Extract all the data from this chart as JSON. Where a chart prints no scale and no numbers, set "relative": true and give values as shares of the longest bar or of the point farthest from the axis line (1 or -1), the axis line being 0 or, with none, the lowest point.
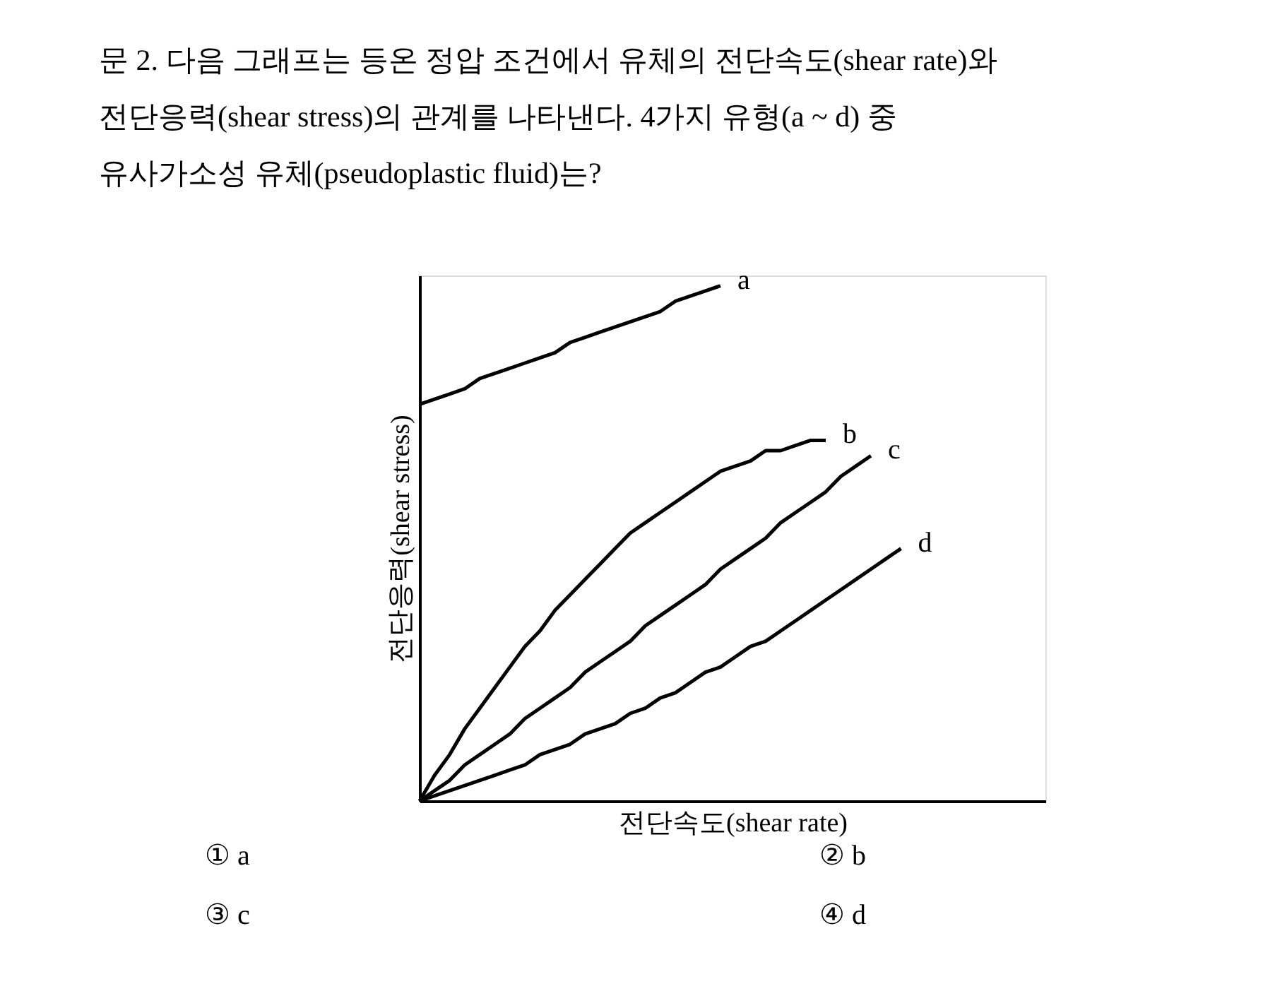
{
  "chart_data": {
    "type": "line",
    "title": [
      "문  2. 다음 그래프는 등온 정압 조건에서 유체의 전단속도(shear rate)와",
      "전단응력(shear stress)의 관계를 나타낸다. 4가지 유형(a ~ d) 중",
      "유사가소성 유체(pseudoplastic fluid)는?"
    ],
    "xlabel": "전단속도(shear rate)",
    "ylabel": "전단응력(shear stress)",
    "relative": true,
    "legend": false,
    "grid": false,
    "marker": "none",
    "line_style": "solid",
    "categories": [
      null,
      null,
      null,
      null,
      null,
      null,
      null,
      null,
      null,
      null,
      null,
      null,
      null,
      null,
      null,
      null,
      null,
      null,
      null,
      null,
      null,
      null,
      null,
      null,
      null,
      null,
      null,
      null,
      null,
      null,
      null,
      null,
      null
    ],
    "series": [
      {
        "name": "a",
        "color": "#000000",
        "values": [
          0.77,
          0.78,
          0.79,
          0.8,
          0.82,
          0.83,
          0.84,
          0.85,
          0.86,
          0.87,
          0.89,
          0.9,
          0.91,
          0.92,
          0.93,
          0.94,
          0.95,
          0.97,
          0.98,
          0.99,
          1.0,
          null,
          null,
          null,
          null,
          null,
          null,
          null,
          null,
          null,
          null,
          null,
          null
        ]
      },
      {
        "name": "b",
        "color": "#000000",
        "values": [
          0,
          0.05,
          0.09,
          0.14,
          0.18,
          0.22,
          0.26,
          0.3,
          0.33,
          0.37,
          0.4,
          0.43,
          0.46,
          0.49,
          0.52,
          0.54,
          0.56,
          0.58,
          0.6,
          0.62,
          0.64,
          0.65,
          0.66,
          0.68,
          0.68,
          0.69,
          0.7,
          0.7,
          null,
          null,
          null,
          null,
          null
        ]
      },
      {
        "name": "c",
        "color": "#000000",
        "values": [
          0,
          0.02,
          0.04,
          0.07,
          0.09,
          0.11,
          0.13,
          0.16,
          0.18,
          0.2,
          0.22,
          0.25,
          0.27,
          0.29,
          0.31,
          0.34,
          0.36,
          0.38,
          0.4,
          0.42,
          0.45,
          0.47,
          0.49,
          0.51,
          0.54,
          0.56,
          0.58,
          0.6,
          0.63,
          0.65,
          0.67,
          null,
          null
        ]
      },
      {
        "name": "d",
        "color": "#000000",
        "values": [
          0,
          0.01,
          0.02,
          0.03,
          0.04,
          0.05,
          0.06,
          0.07,
          0.09,
          0.1,
          0.11,
          0.13,
          0.14,
          0.15,
          0.17,
          0.18,
          0.2,
          0.21,
          0.23,
          0.25,
          0.26,
          0.28,
          0.3,
          0.31,
          0.33,
          0.35,
          0.37,
          0.39,
          0.41,
          0.43,
          0.45,
          0.47,
          0.49
        ]
      }
    ],
    "annotations": [
      "① a",
      "② b",
      "③ c",
      "④ d"
    ]
  }
}
